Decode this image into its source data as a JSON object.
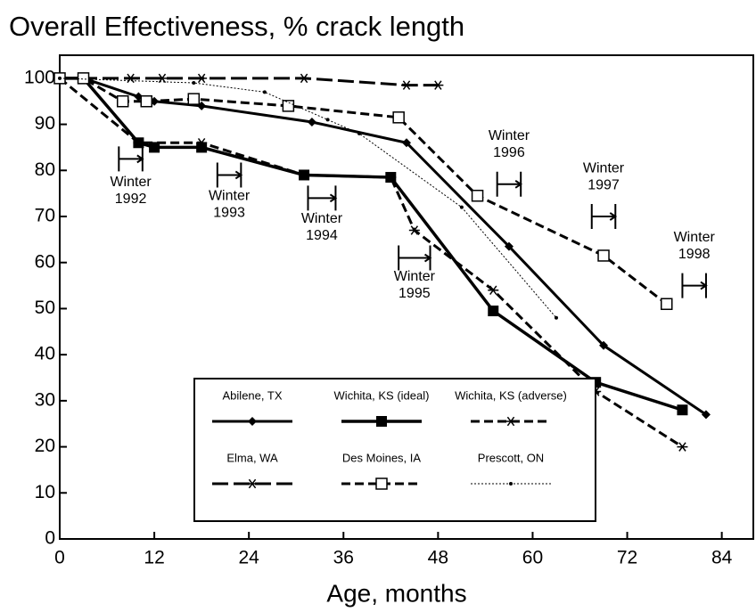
{
  "chart_data": {
    "type": "line",
    "title": "Overall Effectiveness, % crack length",
    "x_label": "Age, months",
    "xlim": [
      0,
      88
    ],
    "xticks": [
      0,
      12,
      24,
      36,
      48,
      60,
      72,
      84
    ],
    "ylim": [
      0,
      105
    ],
    "yticks": [
      0,
      10,
      20,
      30,
      40,
      50,
      60,
      70,
      80,
      90,
      100
    ],
    "grid": false,
    "legend": "lower center",
    "series": [
      {
        "name": "Abilene, TX",
        "color": "#000000",
        "dash": "solid",
        "width": 3,
        "marker": "diamond",
        "x": [
          0,
          3,
          10,
          12,
          18,
          32,
          44,
          57,
          69,
          82
        ],
        "values": [
          100,
          100,
          96,
          95,
          94,
          90.5,
          86,
          63.5,
          42,
          27
        ]
      },
      {
        "name": "Wichita, KS (ideal)",
        "color": "#000000",
        "dash": "solid",
        "width": 3.5,
        "marker": "filled-square",
        "x": [
          0,
          3,
          10,
          12,
          18,
          31,
          42,
          55,
          68,
          79
        ],
        "values": [
          100,
          100,
          86,
          85,
          85,
          79,
          78.5,
          49.5,
          34,
          28
        ]
      },
      {
        "name": "Wichita, KS (adverse)",
        "color": "#000000",
        "dash": "dashed",
        "width": 3,
        "marker": "asterisk",
        "x": [
          0,
          10,
          18,
          31,
          42,
          45,
          55,
          68,
          79
        ],
        "values": [
          100,
          86,
          86,
          79,
          78.5,
          67,
          54,
          32,
          20
        ]
      },
      {
        "name": "Elma, WA",
        "color": "#000000",
        "dash": "longdash",
        "width": 3,
        "marker": "star",
        "x": [
          0,
          9,
          13,
          18,
          31,
          44,
          48
        ],
        "values": [
          100,
          100,
          100,
          100,
          100,
          98.5,
          98.5
        ]
      },
      {
        "name": "Des Moines, IA",
        "color": "#000000",
        "dash": "dashed",
        "width": 3,
        "marker": "open-square",
        "x": [
          0,
          3,
          8,
          11,
          17,
          29,
          43,
          53,
          69,
          77
        ],
        "values": [
          100,
          100,
          95,
          95,
          95.5,
          94,
          91.5,
          74.5,
          61.5,
          51
        ]
      },
      {
        "name": "Prescott, ON",
        "color": "#000000",
        "dash": "dotted",
        "width": 1,
        "marker": "dot",
        "x": [
          0,
          17,
          26,
          34,
          38,
          51,
          63
        ],
        "values": [
          100,
          99,
          97,
          91,
          88,
          72,
          48
        ]
      }
    ],
    "annotations": [
      {
        "lines": [
          "Winter",
          "1992"
        ],
        "x": [
          7.5,
          10.5
        ],
        "y": 82.5,
        "label_y": 75.5
      },
      {
        "lines": [
          "Winter",
          "1993"
        ],
        "x": [
          20,
          23
        ],
        "y": 79,
        "label_y": 72.5
      },
      {
        "lines": [
          "Winter",
          "1994"
        ],
        "x": [
          31.5,
          35
        ],
        "y": 74,
        "label_y": 67.5
      },
      {
        "lines": [
          "Winter",
          "1995"
        ],
        "x": [
          43,
          47
        ],
        "y": 61,
        "label_y": 55
      },
      {
        "lines": [
          "Winter",
          "1996"
        ],
        "x": [
          55.5,
          58.5
        ],
        "y": 77,
        "label_y": 85.5
      },
      {
        "lines": [
          "Winter",
          "1997"
        ],
        "x": [
          67.5,
          70.5
        ],
        "y": 70,
        "label_y": 78.5
      },
      {
        "lines": [
          "Winter",
          "1998"
        ],
        "x": [
          79,
          82
        ],
        "y": 55,
        "label_y": 63.5
      }
    ]
  }
}
